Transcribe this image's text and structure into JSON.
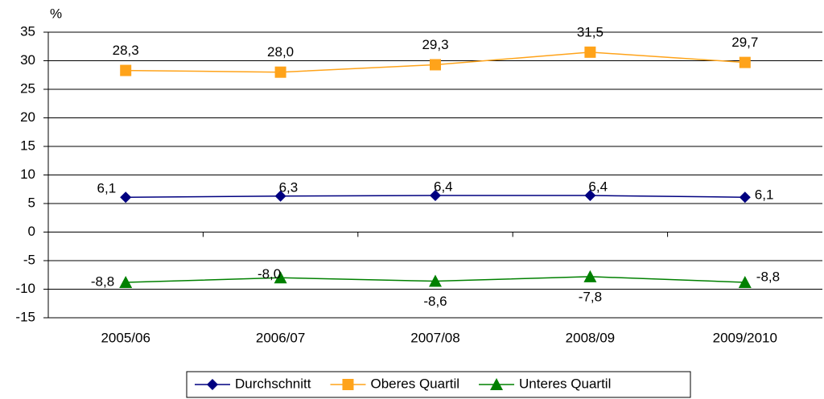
{
  "chart_data": {
    "type": "line",
    "y_label": "%",
    "categories": [
      "2005/06",
      "2006/07",
      "2007/08",
      "2008/09",
      "2009/2010"
    ],
    "series": [
      {
        "name": "Durchschnitt",
        "color": "#000080",
        "marker": "diamond",
        "values": [
          6.1,
          6.3,
          6.4,
          6.4,
          6.1
        ],
        "value_labels": [
          "6,1",
          "6,3",
          "6,4",
          "6,4",
          "6,1"
        ]
      },
      {
        "name": "Oberes Quartil",
        "color": "#ffa31a",
        "marker": "square",
        "values": [
          28.3,
          28.0,
          29.3,
          31.5,
          29.7
        ],
        "value_labels": [
          "28,3",
          "28,0",
          "29,3",
          "31,5",
          "29,7"
        ]
      },
      {
        "name": "Unteres Quartil",
        "color": "#008000",
        "marker": "triangle",
        "values": [
          -8.8,
          -8.0,
          -8.6,
          -7.8,
          -8.8
        ],
        "value_labels": [
          "-8,8",
          "-8,0",
          "-8,6",
          "-7,8",
          "-8,8"
        ]
      }
    ],
    "ylim": [
      -15,
      35
    ],
    "yticks": [
      -15,
      -10,
      -5,
      0,
      5,
      10,
      15,
      20,
      25,
      30,
      35
    ],
    "grid": true,
    "legend": "bottom"
  }
}
